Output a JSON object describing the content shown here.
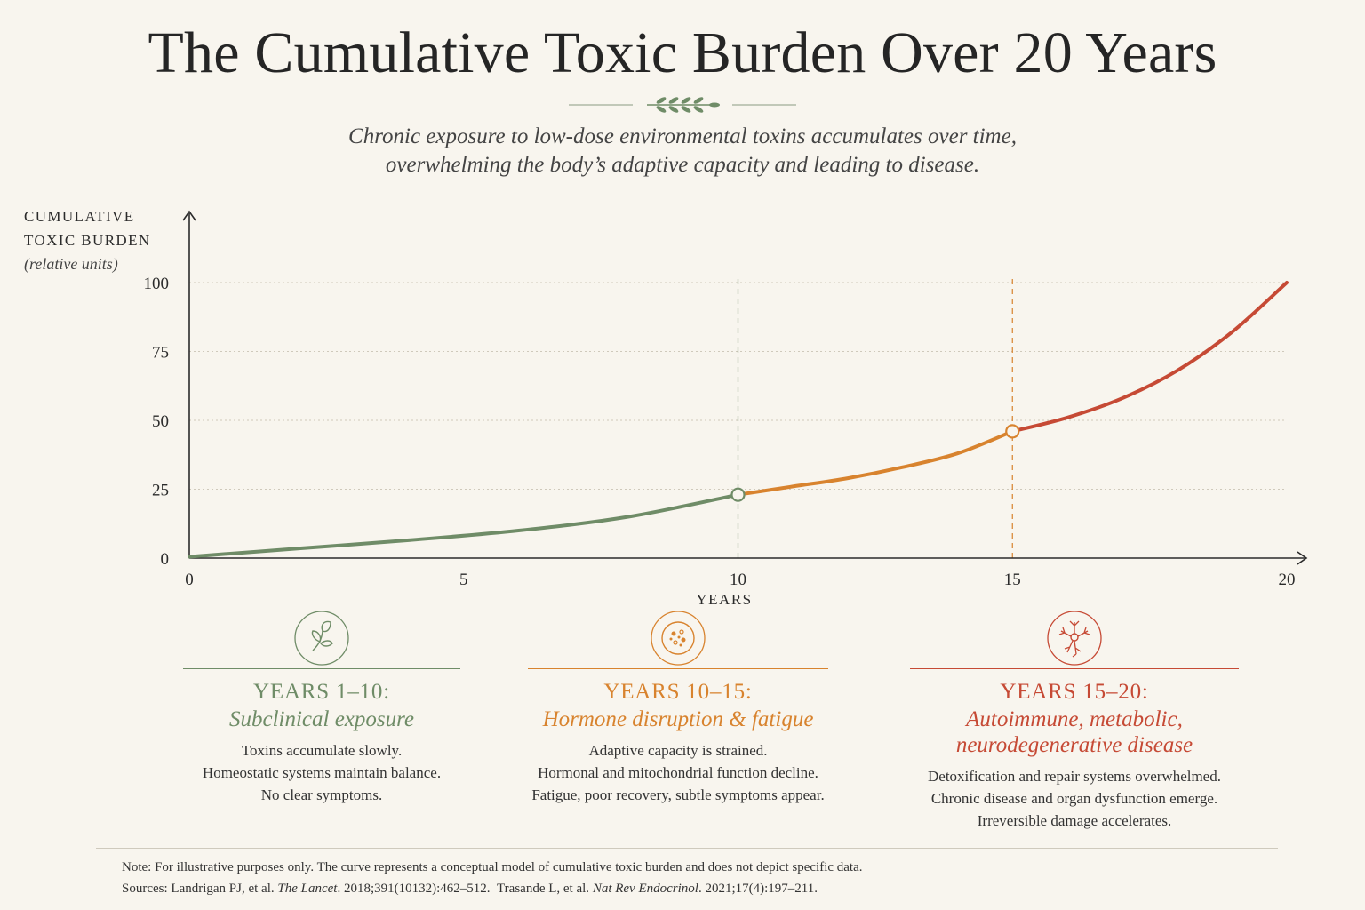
{
  "title": "The Cumulative Toxic Burden Over 20 Years",
  "subtitle_line1": "Chronic exposure to low-dose environmental toxins accumulates over time,",
  "subtitle_line2": "overwhelming the body’s adaptive capacity and leading to disease.",
  "colors": {
    "background": "#f8f5ee",
    "green": "#6f8c67",
    "orange": "#d8832e",
    "red": "#c64a35",
    "axis": "#2b2b2b"
  },
  "chart_data": {
    "type": "line",
    "ylabel_line1": "CUMULATIVE",
    "ylabel_line2": "TOXIC BURDEN",
    "ylabel_unit": "(relative units)",
    "xlabel": "YEARS",
    "xlim": [
      0,
      20
    ],
    "ylim": [
      0,
      100
    ],
    "x_ticks": [
      0,
      5,
      10,
      15,
      20
    ],
    "y_ticks": [
      0,
      25,
      50,
      75,
      100
    ],
    "grid": "horizontal dotted",
    "markers": [
      {
        "x": 10,
        "y": 23,
        "color": "#6f8c67"
      },
      {
        "x": 15,
        "y": 46,
        "color": "#d8832e"
      }
    ],
    "series": [
      {
        "segment": "years 0–10",
        "color": "#6f8c67",
        "points": [
          [
            0,
            0.5
          ],
          [
            2,
            3.5
          ],
          [
            4,
            6.5
          ],
          [
            6,
            10
          ],
          [
            8,
            15
          ],
          [
            10,
            23
          ]
        ]
      },
      {
        "segment": "years 10–15",
        "color": "#d8832e",
        "points": [
          [
            10,
            23
          ],
          [
            11,
            26
          ],
          [
            12,
            29
          ],
          [
            13,
            33
          ],
          [
            14,
            38
          ],
          [
            15,
            46
          ]
        ]
      },
      {
        "segment": "years 15–20",
        "color": "#c64a35",
        "points": [
          [
            15,
            46
          ],
          [
            16,
            51
          ],
          [
            17,
            58
          ],
          [
            18,
            68
          ],
          [
            19,
            82
          ],
          [
            20,
            100
          ]
        ]
      }
    ]
  },
  "phases": [
    {
      "icon": "leaf-icon",
      "color": "#6f8c67",
      "heading": "YEARS 1–10:",
      "subhead": "Subclinical exposure",
      "lines": [
        "Toxins accumulate slowly.",
        "Homeostatic systems maintain balance.",
        "No clear symptoms."
      ]
    },
    {
      "icon": "cell-icon",
      "color": "#d8832e",
      "heading": "YEARS 10–15:",
      "subhead": "Hormone disruption & fatigue",
      "lines": [
        "Adaptive capacity is strained.",
        "Hormonal and mitochondrial function decline.",
        "Fatigue, poor recovery, subtle symptoms appear."
      ]
    },
    {
      "icon": "neuron-icon",
      "color": "#c64a35",
      "heading": "YEARS 15–20:",
      "subhead_line1": "Autoimmune, metabolic,",
      "subhead_line2": "neurodegenerative disease",
      "lines": [
        "Detoxification and repair systems overwhelmed.",
        "Chronic disease and organ dysfunction emerge.",
        "Irreversible damage accelerates."
      ]
    }
  ],
  "footnote": {
    "note": "Note: For illustrative purposes only. The curve represents a conceptual model of cumulative toxic burden and does not depict specific data.",
    "sources_prefix": "Sources: Landrigan PJ, et al.",
    "source1_journal": "The Lancet",
    "source1_rest": ". 2018;391(10132):462–512.",
    "source2_author": "Trasande L, et al.",
    "source2_journal": "Nat Rev Endocrinol",
    "source2_rest": ". 2021;17(4):197–211."
  }
}
